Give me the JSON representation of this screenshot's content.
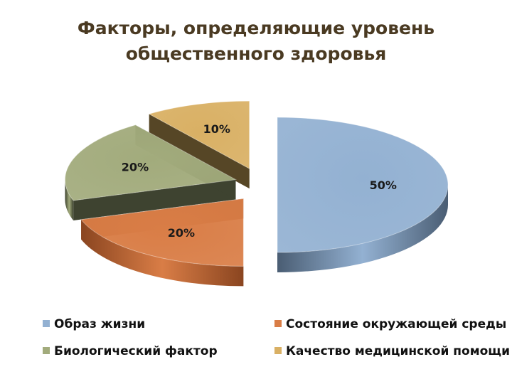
{
  "title_line1": "Факторы, определяющие уровень",
  "title_line2": "общественного здоровья",
  "chart_data": {
    "type": "pie",
    "style": "3d-exploded",
    "title": "Факторы, определяющие уровень общественного здоровья",
    "categories": [
      "Образ жизни",
      "Состояние окружающей среды",
      "Биологический фактор",
      "Качество медицинской помощи"
    ],
    "values": [
      50,
      20,
      20,
      10
    ],
    "data_labels": [
      "50%",
      "20%",
      "20%",
      "10%"
    ],
    "colors": [
      "#93b1d2",
      "#d97d46",
      "#a2ab7c",
      "#d9b064"
    ],
    "side_colors": [
      "#4a5d73",
      "#8a4520",
      "#3e4330",
      "#564626"
    ],
    "legend_position": "bottom"
  }
}
